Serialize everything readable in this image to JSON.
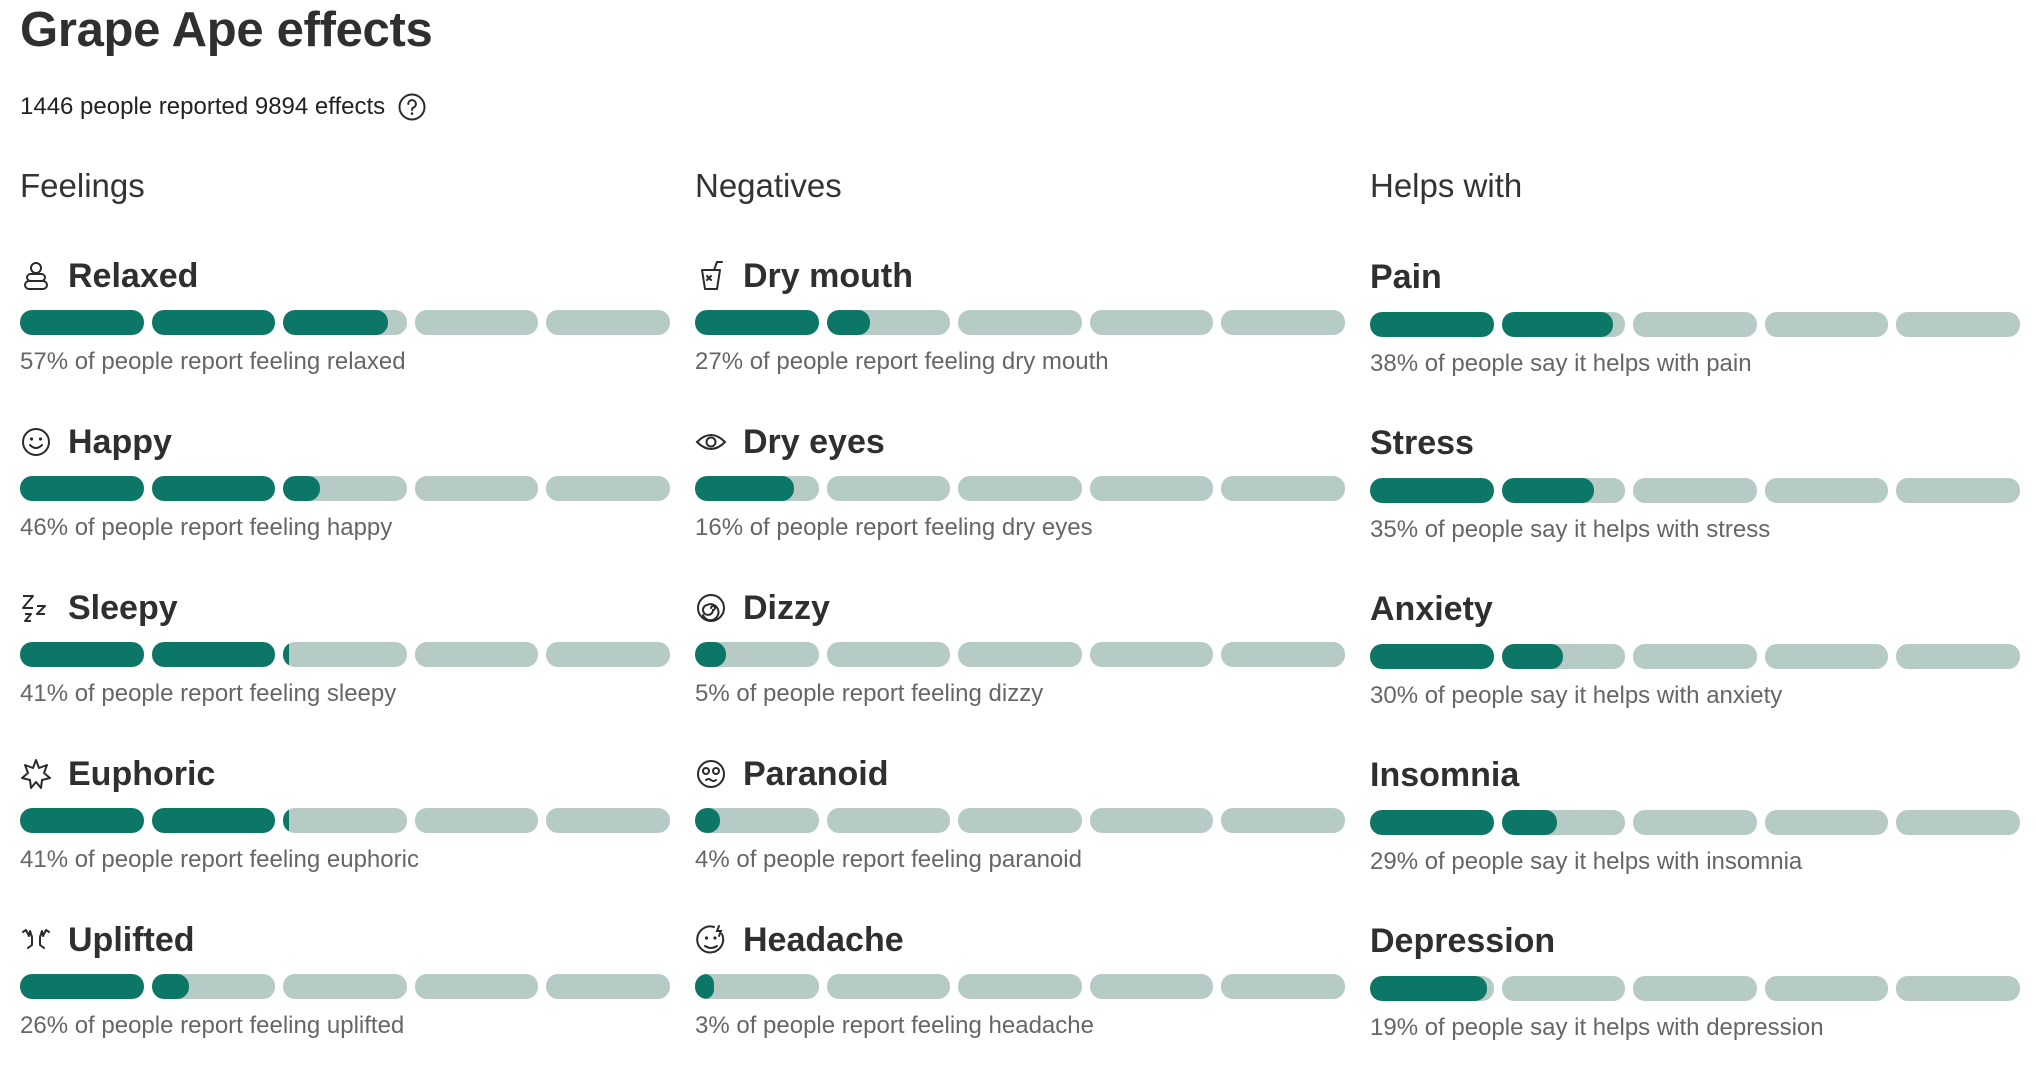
{
  "page": {
    "title": "Grape Ape effects",
    "summary": "1446 people reported 9894 effects",
    "help_icon": "question-circle-icon"
  },
  "colors": {
    "fill": "#0c7766",
    "track": "#b6cbc5",
    "muted_text": "#666666"
  },
  "columns": [
    {
      "heading": "Feelings",
      "items": [
        {
          "name": "Relaxed",
          "icon": "relaxed-icon",
          "percent": 57,
          "desc": "57% of people report feeling relaxed"
        },
        {
          "name": "Happy",
          "icon": "smiley-icon",
          "percent": 46,
          "desc": "46% of people report feeling happy"
        },
        {
          "name": "Sleepy",
          "icon": "zzz-icon",
          "percent": 41,
          "desc": "41% of people report feeling sleepy"
        },
        {
          "name": "Euphoric",
          "icon": "starburst-icon",
          "percent": 41,
          "desc": "41% of people report feeling euphoric"
        },
        {
          "name": "Uplifted",
          "icon": "raised-hands-icon",
          "percent": 26,
          "desc": "26% of people report feeling uplifted"
        }
      ]
    },
    {
      "heading": "Negatives",
      "items": [
        {
          "name": "Dry mouth",
          "icon": "cup-icon",
          "percent": 27,
          "desc": "27% of people report feeling dry mouth"
        },
        {
          "name": "Dry eyes",
          "icon": "eye-icon",
          "percent": 16,
          "desc": "16% of people report feeling dry eyes"
        },
        {
          "name": "Dizzy",
          "icon": "spiral-icon",
          "percent": 5,
          "desc": "5% of people report feeling dizzy"
        },
        {
          "name": "Paranoid",
          "icon": "anxious-face-icon",
          "percent": 4,
          "desc": "4% of people report feeling paranoid"
        },
        {
          "name": "Headache",
          "icon": "headache-face-icon",
          "percent": 3,
          "desc": "3% of people report feeling headache"
        }
      ]
    },
    {
      "heading": "Helps with",
      "items": [
        {
          "name": "Pain",
          "percent": 38,
          "desc": "38% of people say it helps with pain"
        },
        {
          "name": "Stress",
          "percent": 35,
          "desc": "35% of people say it helps with stress"
        },
        {
          "name": "Anxiety",
          "percent": 30,
          "desc": "30% of people say it helps with anxiety"
        },
        {
          "name": "Insomnia",
          "percent": 29,
          "desc": "29% of people say it helps with insomnia"
        },
        {
          "name": "Depression",
          "percent": 19,
          "desc": "19% of people say it helps with depression"
        }
      ]
    }
  ]
}
